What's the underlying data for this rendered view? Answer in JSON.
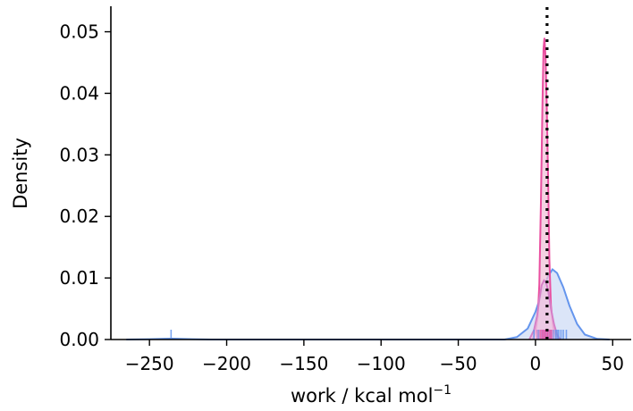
{
  "chart_data": {
    "type": "area",
    "title": "",
    "xlabel": "work / kcal mol",
    "xlabel_superscript": "−1",
    "ylabel": "Density",
    "xlim": [
      -275,
      62
    ],
    "ylim": [
      0,
      0.054
    ],
    "x_ticks": [
      -250,
      -200,
      -150,
      -100,
      -50,
      0,
      50
    ],
    "x_tick_labels": [
      "−250",
      "−200",
      "−150",
      "−100",
      "−50",
      "0",
      "50"
    ],
    "y_ticks": [
      0,
      0.01,
      0.02,
      0.03,
      0.04,
      0.05
    ],
    "y_tick_labels": [
      "0.00",
      "0.01",
      "0.02",
      "0.03",
      "0.04",
      "0.05"
    ],
    "grid": false,
    "reference_line": {
      "x": 7.5,
      "style": "dotted",
      "color": "#000000"
    },
    "series": [
      {
        "color": "#6495ED",
        "fill_color": "#cfdcf5",
        "kde": [
          [
            -265,
            0
          ],
          [
            -250,
            5e-05
          ],
          [
            -240,
            0.00012
          ],
          [
            -236,
            0.00015
          ],
          [
            -232,
            0.00012
          ],
          [
            -222,
            5e-05
          ],
          [
            -210,
            0
          ],
          [
            -20,
            0
          ],
          [
            -12,
            0.0004
          ],
          [
            -5,
            0.0018
          ],
          [
            0,
            0.0045
          ],
          [
            4,
            0.0075
          ],
          [
            8,
            0.0102
          ],
          [
            11,
            0.0114
          ],
          [
            14,
            0.0108
          ],
          [
            18,
            0.0085
          ],
          [
            22,
            0.0055
          ],
          [
            27,
            0.0025
          ],
          [
            32,
            0.0008
          ],
          [
            40,
            0.0001
          ],
          [
            48,
            0
          ]
        ],
        "rug": [
          -236,
          -1,
          2,
          4,
          5.5,
          7,
          8.5,
          10,
          11.5,
          13,
          14,
          15,
          16.5,
          18,
          20
        ]
      },
      {
        "color": "#ea4fa0",
        "fill_color": "#efc2d8",
        "kde": [
          [
            -2,
            0
          ],
          [
            0,
            0.0012
          ],
          [
            1.5,
            0.0038
          ],
          [
            2.5,
            0.009
          ],
          [
            3.5,
            0.022
          ],
          [
            4.5,
            0.038
          ],
          [
            5.2,
            0.0472
          ],
          [
            5.8,
            0.049
          ],
          [
            6.5,
            0.046
          ],
          [
            7.3,
            0.038
          ],
          [
            8.2,
            0.026
          ],
          [
            9,
            0.013
          ],
          [
            10,
            0.0055
          ],
          [
            11.5,
            0.002
          ],
          [
            13,
            0.0007
          ],
          [
            15,
            0
          ]
        ],
        "rug": [
          3.5,
          4,
          4.5,
          5,
          5.5,
          6,
          6.5,
          7,
          7.5,
          8,
          9,
          10
        ]
      },
      {
        "color": "#d580c8",
        "fill_color": "#ecc8e6",
        "kde": [
          [
            -4,
            0
          ],
          [
            -1,
            0.0015
          ],
          [
            1,
            0.0038
          ],
          [
            2.5,
            0.0065
          ],
          [
            4,
            0.0088
          ],
          [
            5.5,
            0.0096
          ],
          [
            7,
            0.0092
          ],
          [
            8.5,
            0.0075
          ],
          [
            10,
            0.005
          ],
          [
            12,
            0.0025
          ],
          [
            14,
            0.0008
          ],
          [
            16,
            0
          ]
        ],
        "rug": [
          1,
          2.5,
          4,
          5.5,
          7,
          8.5,
          11
        ]
      }
    ]
  }
}
